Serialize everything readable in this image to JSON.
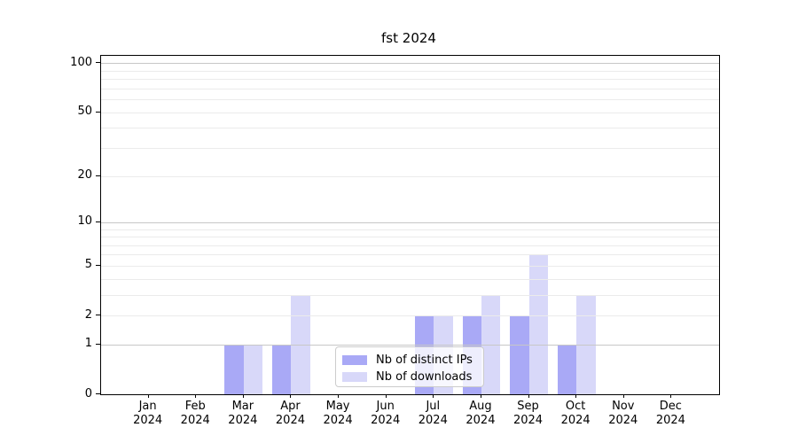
{
  "chart_data": {
    "type": "bar",
    "title": "fst 2024",
    "categories": [
      "Jan 2024",
      "Feb 2024",
      "Mar 2024",
      "Apr 2024",
      "May 2024",
      "Jun 2024",
      "Jul 2024",
      "Aug 2024",
      "Sep 2024",
      "Oct 2024",
      "Nov 2024",
      "Dec 2024"
    ],
    "series": [
      {
        "name": "Nb of distinct IPs",
        "color": "#a9a9f6",
        "values": [
          0,
          0,
          1,
          1,
          0,
          0,
          2,
          2,
          2,
          1,
          0,
          0
        ]
      },
      {
        "name": "Nb of downloads",
        "color": "#d8d8f9",
        "values": [
          0,
          0,
          1,
          3,
          0,
          0,
          2,
          3,
          6,
          3,
          0,
          0
        ]
      }
    ],
    "xlabel": "",
    "ylabel": "",
    "yscale": "log1p",
    "ylim": [
      0,
      111
    ],
    "ytick_values": [
      0,
      1,
      2,
      5,
      10,
      20,
      50,
      100
    ],
    "ytick_labels": [
      "0",
      "1",
      "2",
      "5",
      "10",
      "20",
      "50",
      "100"
    ],
    "grid": "on",
    "grid_major_values": [
      1,
      10,
      100
    ],
    "grid_minor_values": [
      2,
      3,
      4,
      5,
      6,
      7,
      8,
      9,
      20,
      30,
      40,
      50,
      60,
      70,
      80,
      90
    ],
    "legend_position": "lower-center-inside"
  },
  "colors": {
    "grid_major": "#c7c7c7",
    "grid_minor": "#ebebeb",
    "spine": "#000000",
    "text": "#000000",
    "legend_border": "#cccccc"
  }
}
